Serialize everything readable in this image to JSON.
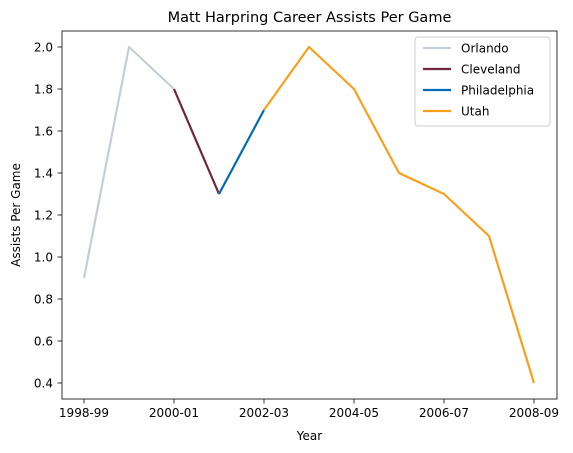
{
  "chart_data": {
    "type": "line",
    "title": "Matt Harpring Career Assists Per Game",
    "xlabel": "Year",
    "ylabel": "Assists Per Game",
    "x_ticks": [
      "1998-99",
      "2000-01",
      "2002-03",
      "2004-05",
      "2006-07",
      "2008-09"
    ],
    "y_ticks": [
      "0.4",
      "0.6",
      "0.8",
      "1.0",
      "1.2",
      "1.4",
      "1.6",
      "1.8",
      "2.0"
    ],
    "ylim": [
      0.33,
      2.08
    ],
    "grid": false,
    "legend_position": "top-right",
    "series": [
      {
        "name": "Orlando",
        "color": "#c4ced4",
        "points": [
          [
            0,
            0.9
          ],
          [
            1,
            2.0
          ],
          [
            2,
            1.8
          ]
        ]
      },
      {
        "name": "Cleveland",
        "color": "#6f263d",
        "points": [
          [
            2,
            1.8
          ],
          [
            3,
            1.3
          ]
        ]
      },
      {
        "name": "Philadelphia",
        "color": "#006bb6",
        "points": [
          [
            3,
            1.3
          ],
          [
            4,
            1.7
          ]
        ]
      },
      {
        "name": "Utah",
        "color": "#f9a01b",
        "points": [
          [
            4,
            1.7
          ],
          [
            5,
            2.0
          ],
          [
            6,
            1.8
          ],
          [
            7,
            1.4
          ],
          [
            8,
            1.3
          ],
          [
            9,
            1.1
          ],
          [
            10,
            0.4
          ]
        ]
      }
    ]
  }
}
